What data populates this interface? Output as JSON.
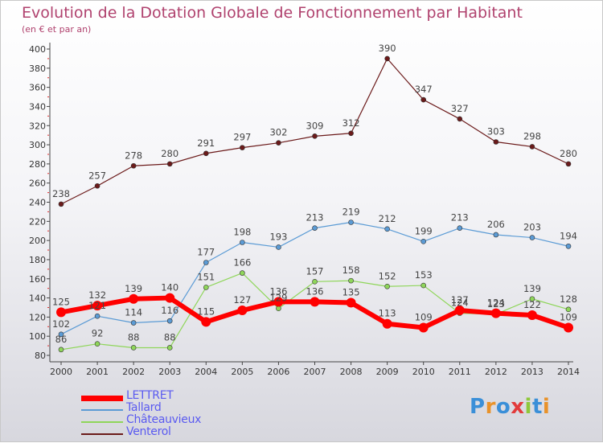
{
  "title": "Evolution de la Dotation Globale de Fonctionnement par Habitant",
  "subtitle": "(en € et par an)",
  "logo_text": "Proxiti",
  "chart_data": {
    "type": "line",
    "x": [
      "2000",
      "2001",
      "2002",
      "2003",
      "2004",
      "2005",
      "2006",
      "2007",
      "2008",
      "2009",
      "2010",
      "2011",
      "2012",
      "2013",
      "2014"
    ],
    "ylim": [
      80,
      400
    ],
    "yticks": [
      80,
      100,
      120,
      140,
      160,
      180,
      200,
      220,
      240,
      260,
      280,
      300,
      320,
      340,
      360,
      380,
      400
    ],
    "grid": false,
    "legend_position": "bottom-left",
    "series": [
      {
        "name": "LETTRET",
        "color": "#ff0000",
        "values": [
          125,
          132,
          139,
          140,
          115,
          127,
          136,
          136,
          135,
          113,
          109,
          127,
          124,
          122,
          109
        ]
      },
      {
        "name": "Tallard",
        "color": "#5b9bd5",
        "values": [
          102,
          121,
          114,
          116,
          177,
          198,
          193,
          213,
          219,
          212,
          199,
          213,
          206,
          203,
          194
        ]
      },
      {
        "name": "Châteauvieux",
        "color": "#8fd65a",
        "values": [
          86,
          92,
          88,
          88,
          151,
          166,
          129,
          157,
          158,
          152,
          153,
          124,
          123,
          139,
          128
        ]
      },
      {
        "name": "Venterol",
        "color": "#6b1a1a",
        "values": [
          238,
          257,
          278,
          280,
          291,
          297,
          302,
          309,
          312,
          390,
          347,
          327,
          303,
          298,
          280
        ]
      }
    ]
  }
}
